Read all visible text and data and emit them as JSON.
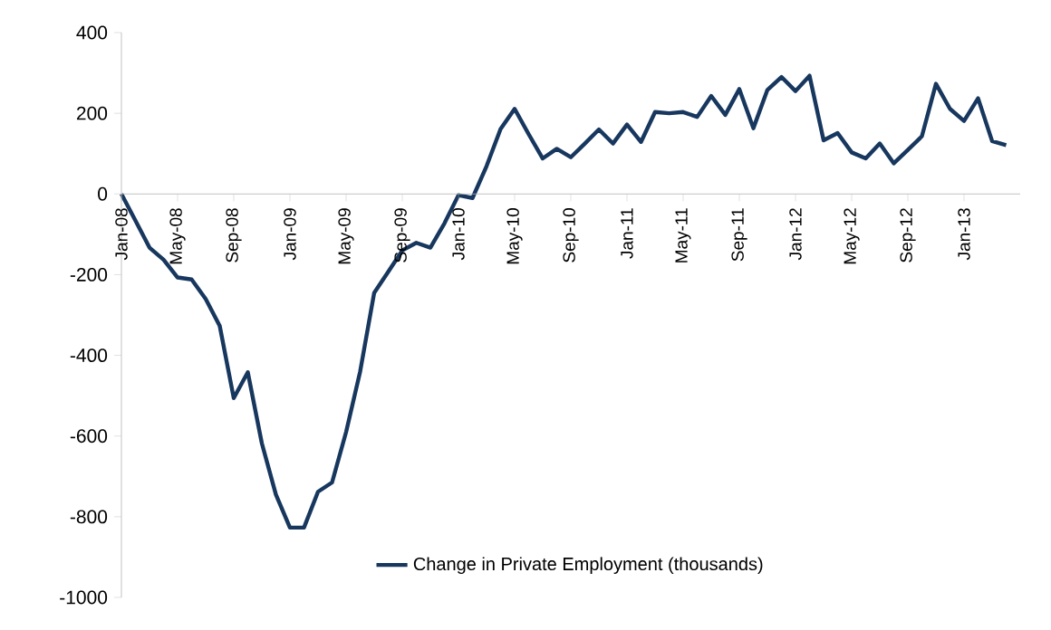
{
  "chart_data": {
    "type": "line",
    "categories": [
      "Jan-08",
      null,
      null,
      null,
      "May-08",
      null,
      null,
      null,
      "Sep-08",
      null,
      null,
      null,
      "Jan-09",
      null,
      null,
      null,
      "May-09",
      null,
      null,
      null,
      "Sep-09",
      null,
      null,
      null,
      "Jan-10",
      null,
      null,
      null,
      "May-10",
      null,
      null,
      null,
      "Sep-10",
      null,
      null,
      null,
      "Jan-11",
      null,
      null,
      null,
      "May-11",
      null,
      null,
      null,
      "Sep-11",
      null,
      null,
      null,
      "Jan-12",
      null,
      null,
      null,
      "May-12",
      null,
      null,
      null,
      "Sep-12",
      null,
      null,
      null,
      "Jan-13",
      null,
      null,
      null
    ],
    "series": [
      {
        "name": "Change in Private Employment (thousands)",
        "color": "#17375e",
        "values": [
          0,
          -66,
          -133,
          -163,
          -207,
          -212,
          -260,
          -327,
          -506,
          -442,
          -618,
          -745,
          -827,
          -827,
          -738,
          -715,
          -590,
          -440,
          -245,
          -193,
          -140,
          -121,
          -133,
          -73,
          -3,
          -10,
          69,
          161,
          211,
          148,
          88,
          112,
          91,
          125,
          160,
          125,
          172,
          129,
          203,
          200,
          203,
          191,
          243,
          196,
          260,
          163,
          258,
          290,
          255,
          293,
          133,
          151,
          103,
          88,
          125,
          76,
          109,
          143,
          273,
          211,
          181,
          237,
          131,
          121
        ]
      }
    ],
    "ylim": [
      -1000,
      400
    ],
    "yticks": [
      -1000,
      -800,
      -600,
      -400,
      -200,
      0,
      200,
      400
    ],
    "legend": "bottom"
  }
}
